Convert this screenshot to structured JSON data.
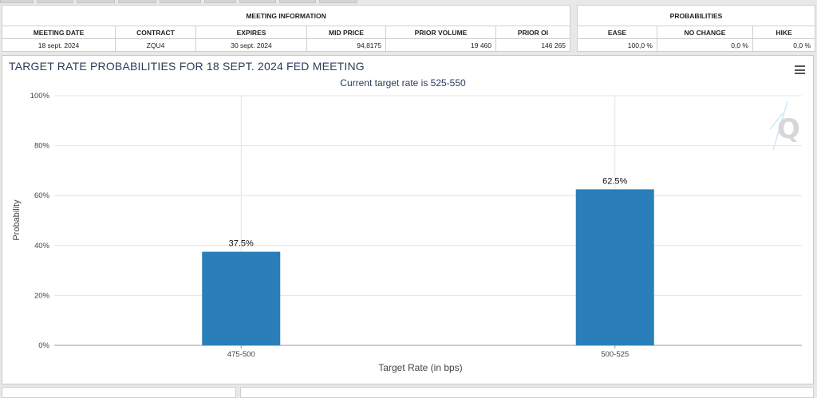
{
  "meeting_info": {
    "header": "MEETING INFORMATION",
    "columns": [
      "MEETING DATE",
      "CONTRACT",
      "EXPIRES",
      "MID PRICE",
      "PRIOR VOLUME",
      "PRIOR OI"
    ],
    "row": [
      "18 sept. 2024",
      "ZQU4",
      "30 sept. 2024",
      "94,8175",
      "19 460",
      "146 265"
    ]
  },
  "probabilities": {
    "header": "PROBABILITIES",
    "columns": [
      "EASE",
      "NO CHANGE",
      "HIKE"
    ],
    "row": [
      "100,0 %",
      "0,0 %",
      "0,0 %"
    ]
  },
  "chart": {
    "menu_icon": "hamburger-menu-icon",
    "watermark_icon": "q-logo-icon",
    "bar_color": "#2a7fba"
  },
  "chart_data": {
    "type": "bar",
    "title": "TARGET RATE PROBABILITIES FOR 18 SEPT. 2024 FED MEETING",
    "subtitle": "Current target rate is 525-550",
    "categories": [
      "475-500",
      "500-525"
    ],
    "values": [
      37.5,
      62.5
    ],
    "data_labels": [
      "37.5%",
      "62.5%"
    ],
    "xlabel": "Target Rate (in bps)",
    "ylabel": "Probability",
    "ylim": [
      0,
      100
    ],
    "yticks": [
      "0%",
      "20%",
      "40%",
      "60%",
      "80%",
      "100%"
    ],
    "grid": true,
    "legend": "none"
  }
}
